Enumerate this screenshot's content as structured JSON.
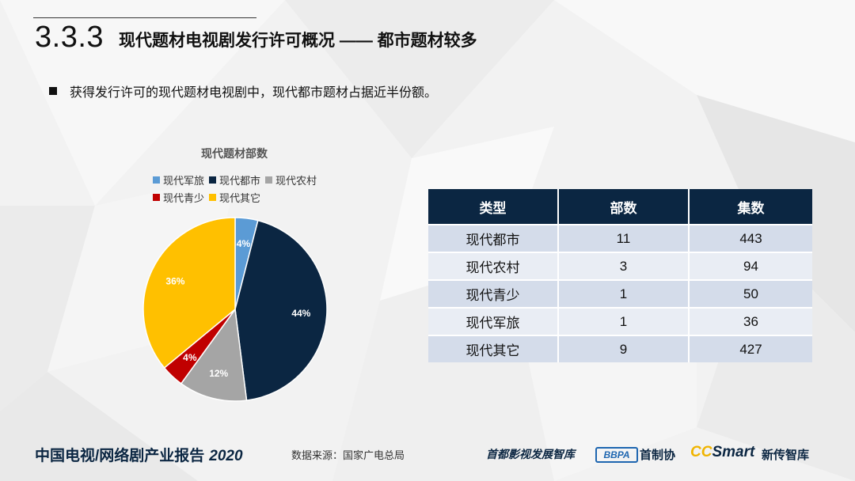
{
  "header": {
    "section_number": "3.3.3",
    "title": "现代题材电视剧发行许可概况 —— 都市题材较多"
  },
  "bullet": "获得发行许可的现代题材电视剧中，现代都市题材占据近半份额。",
  "chart_data": {
    "type": "pie",
    "title": "现代题材部数",
    "labels": [
      "现代军旅",
      "现代都市",
      "现代农村",
      "现代青少",
      "现代其它"
    ],
    "values": [
      4,
      44,
      12,
      4,
      36
    ],
    "data_labels": [
      "4%",
      "44%",
      "12%",
      "4%",
      "36%"
    ],
    "colors": [
      "#5b9bd5",
      "#0b2642",
      "#a5a5a5",
      "#c00000",
      "#ffc000"
    ],
    "label_colors": [
      "#ffffff",
      "#ffffff",
      "#ffffff",
      "#ffffff",
      "#ffffff"
    ],
    "legend_placement": "top"
  },
  "table": {
    "headers": [
      "类型",
      "部数",
      "集数"
    ],
    "rows": [
      [
        "现代都市",
        "11",
        "443"
      ],
      [
        "现代农村",
        "3",
        "94"
      ],
      [
        "现代青少",
        "1",
        "50"
      ],
      [
        "现代军旅",
        "1",
        "36"
      ],
      [
        "现代其它",
        "9",
        "427"
      ]
    ]
  },
  "footer": {
    "report_title": "中国电视/网络剧产业报告",
    "year": "2020",
    "source": "数据来源：国家广电总局",
    "brand1": "首都影视发展智库",
    "bbpa_logo": "BBPA",
    "brand2": "首制协",
    "ccsmart_cc": "CC",
    "ccsmart_rest": "Smart",
    "brand3": "新传智库"
  }
}
